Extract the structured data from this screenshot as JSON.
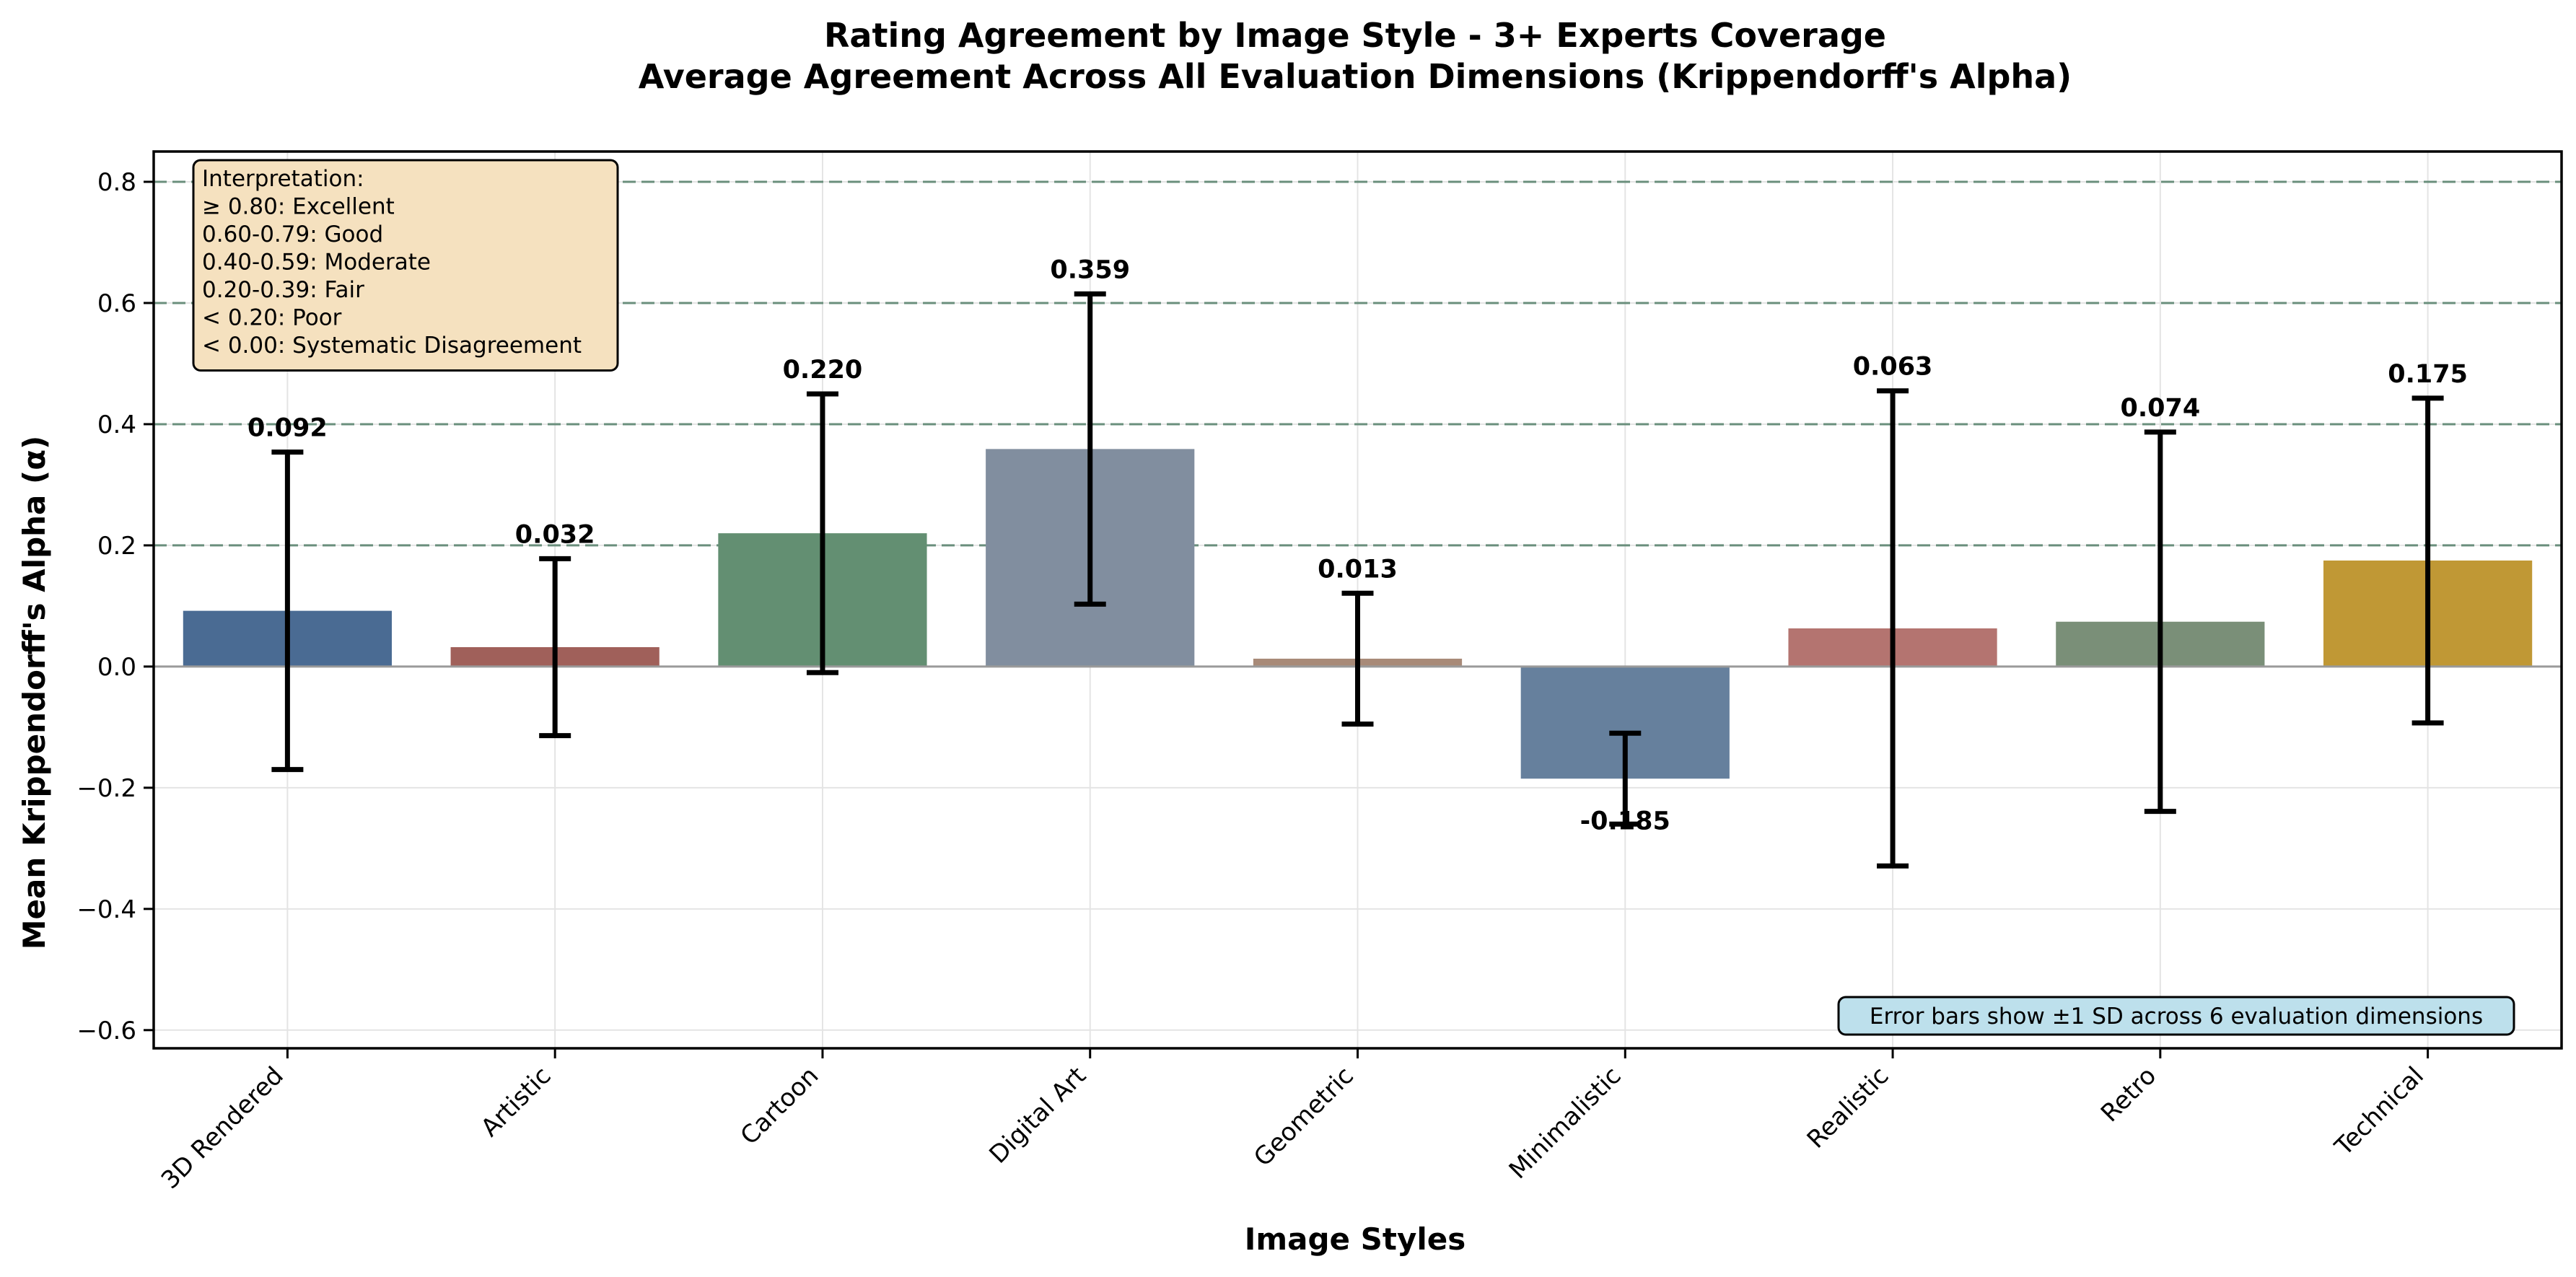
{
  "chart_data": {
    "type": "bar",
    "title": "Rating Agreement by Image Style - 3+ Experts Coverage",
    "subtitle": "Average Agreement Across All Evaluation Dimensions (Krippendorff's Alpha)",
    "xlabel": "Image Styles",
    "ylabel": "Mean Krippendorff's Alpha (α)",
    "ylim": [
      -0.63,
      0.85
    ],
    "yticks": [
      "0.8",
      "0.6",
      "0.4",
      "0.2",
      "0.0",
      "−0.2",
      "−0.4",
      "−0.6"
    ],
    "ytick_values": [
      0.8,
      0.6,
      0.4,
      0.2,
      0.0,
      -0.2,
      -0.4,
      -0.6
    ],
    "reference_lines": [
      0.8,
      0.6,
      0.4,
      0.2
    ],
    "categories": [
      "3D Rendered",
      "Artistic",
      "Cartoon",
      "Digital Art",
      "Geometric",
      "Minimalistic",
      "Realistic",
      "Retro",
      "Technical"
    ],
    "values": [
      0.092,
      0.032,
      0.22,
      0.359,
      0.013,
      -0.185,
      0.063,
      0.074,
      0.175
    ],
    "value_labels": [
      "0.092",
      "0.032",
      "0.220",
      "0.359",
      "0.013",
      "-0.185",
      "0.063",
      "0.074",
      "0.175"
    ],
    "error_sd": [
      0.262,
      0.146,
      0.23,
      0.256,
      0.108,
      0.075,
      0.392,
      0.313,
      0.268
    ],
    "colors": [
      "#4a6b93",
      "#a0605a",
      "#638f72",
      "#818e9f",
      "#a88a78",
      "#66809d",
      "#b47470",
      "#7a8f78",
      "#c09835"
    ],
    "grid": true,
    "interpretation_box": {
      "placement": "top-left",
      "lines": [
        "Interpretation:",
        "≥ 0.80: Excellent",
        "0.60-0.79: Good",
        "0.40-0.59: Moderate",
        "0.20-0.39: Fair",
        "< 0.20: Poor",
        "< 0.00: Systematic Disagreement"
      ]
    },
    "note_box": {
      "placement": "bottom-right",
      "text": "Error bars show ±1 SD across 6 evaluation dimensions"
    }
  },
  "colors": {
    "reference_line": "#6a8f7c",
    "interpretation_fill": "#f5e1bf",
    "note_fill": "#bde0ec"
  }
}
